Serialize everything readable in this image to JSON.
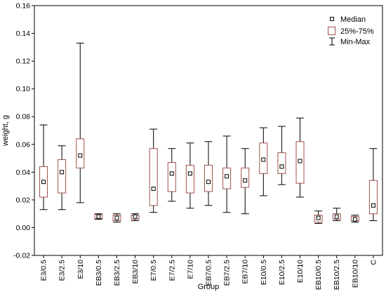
{
  "chart_data": {
    "type": "boxplot",
    "title": "",
    "xlabel": "Group",
    "ylabel": "weight, g",
    "ylim": [
      -0.02,
      0.16
    ],
    "yticks": [
      "-0.02",
      "0.00",
      "0.02",
      "0.04",
      "0.06",
      "0.08",
      "0.10",
      "0.12",
      "0.14",
      "0.16"
    ],
    "categories": [
      "E3/0.5",
      "E3/2.5",
      "E3/10",
      "EB3/0.5",
      "EB3/2.5",
      "EB3/10",
      "E7/0.5",
      "E7/2.5",
      "E7/10",
      "EB7/0.5",
      "EB7/2.5",
      "EB7/10",
      "E10/0.5",
      "E10/2.5",
      "E10/10",
      "EB10/0.5",
      "EB10/2.5",
      "EB10/10",
      "C"
    ],
    "boxes": [
      {
        "min": 0.013,
        "q1": 0.022,
        "median": 0.033,
        "q3": 0.044,
        "max": 0.074
      },
      {
        "min": 0.013,
        "q1": 0.025,
        "median": 0.04,
        "q3": 0.049,
        "max": 0.059
      },
      {
        "min": 0.018,
        "q1": 0.043,
        "median": 0.052,
        "q3": 0.064,
        "max": 0.133
      },
      {
        "min": 0.006,
        "q1": 0.0065,
        "median": 0.008,
        "q3": 0.0095,
        "max": 0.01
      },
      {
        "min": 0.004,
        "q1": 0.005,
        "median": 0.007,
        "q3": 0.009,
        "max": 0.01
      },
      {
        "min": 0.005,
        "q1": 0.006,
        "median": 0.008,
        "q3": 0.009,
        "max": 0.01
      },
      {
        "min": 0.011,
        "q1": 0.016,
        "median": 0.028,
        "q3": 0.057,
        "max": 0.071
      },
      {
        "min": 0.019,
        "q1": 0.026,
        "median": 0.039,
        "q3": 0.047,
        "max": 0.057
      },
      {
        "min": 0.014,
        "q1": 0.025,
        "median": 0.039,
        "q3": 0.045,
        "max": 0.061
      },
      {
        "min": 0.016,
        "q1": 0.026,
        "median": 0.033,
        "q3": 0.045,
        "max": 0.062
      },
      {
        "min": 0.011,
        "q1": 0.028,
        "median": 0.037,
        "q3": 0.043,
        "max": 0.066
      },
      {
        "min": 0.01,
        "q1": 0.029,
        "median": 0.034,
        "q3": 0.043,
        "max": 0.057
      },
      {
        "min": 0.023,
        "q1": 0.039,
        "median": 0.049,
        "q3": 0.061,
        "max": 0.072
      },
      {
        "min": 0.031,
        "q1": 0.039,
        "median": 0.044,
        "q3": 0.054,
        "max": 0.073
      },
      {
        "min": 0.022,
        "q1": 0.032,
        "median": 0.048,
        "q3": 0.062,
        "max": 0.079
      },
      {
        "min": 0.003,
        "q1": 0.004,
        "median": 0.007,
        "q3": 0.009,
        "max": 0.012
      },
      {
        "min": 0.005,
        "q1": 0.006,
        "median": 0.008,
        "q3": 0.01,
        "max": 0.014
      },
      {
        "min": 0.004,
        "q1": 0.005,
        "median": 0.006,
        "q3": 0.008,
        "max": 0.009
      },
      {
        "min": 0.005,
        "q1": 0.01,
        "median": 0.016,
        "q3": 0.034,
        "max": 0.057
      }
    ],
    "legend": {
      "position": "top-right",
      "entries": [
        {
          "symbol": "median-marker",
          "label": "Median"
        },
        {
          "symbol": "box",
          "label": "25%-75%"
        },
        {
          "symbol": "whisker",
          "label": "Min-Max"
        }
      ]
    },
    "grid": false,
    "colors": {
      "box": "#a0524c",
      "whisker": "#000000",
      "median": "#000000",
      "axis": "#000000"
    }
  }
}
